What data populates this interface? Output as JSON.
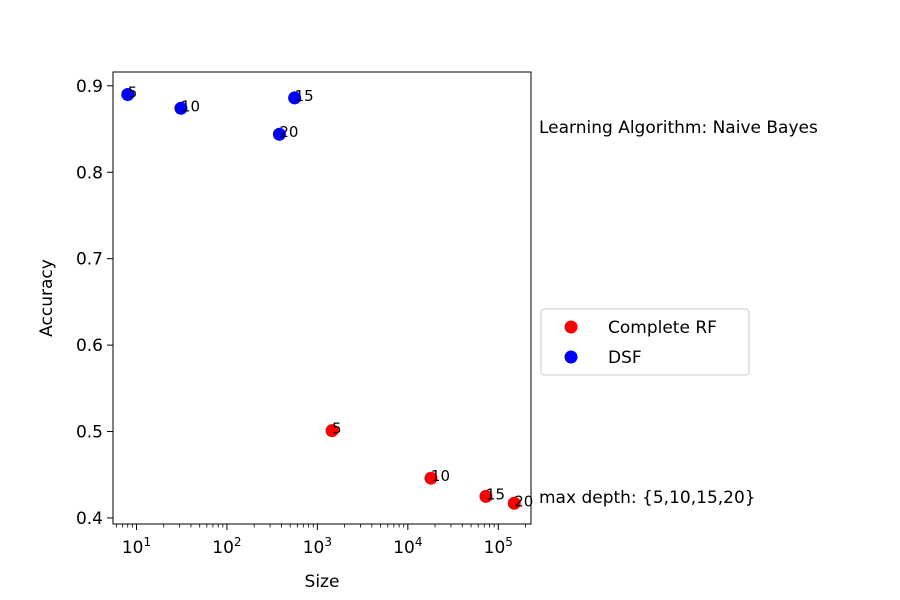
{
  "chart_data": {
    "type": "scatter",
    "xscale": "log",
    "xlabel": "Size",
    "ylabel": "Accuracy",
    "xlim": [
      5.5,
      230000
    ],
    "ylim": [
      0.393,
      0.916
    ],
    "x_ticks": [
      {
        "base": "10",
        "exp": "1",
        "value": 10
      },
      {
        "base": "10",
        "exp": "2",
        "value": 100
      },
      {
        "base": "10",
        "exp": "3",
        "value": 1000
      },
      {
        "base": "10",
        "exp": "4",
        "value": 10000
      },
      {
        "base": "10",
        "exp": "5",
        "value": 100000
      }
    ],
    "y_ticks": [
      {
        "label": "0.4",
        "value": 0.4
      },
      {
        "label": "0.5",
        "value": 0.5
      },
      {
        "label": "0.6",
        "value": 0.6
      },
      {
        "label": "0.7",
        "value": 0.7
      },
      {
        "label": "0.8",
        "value": 0.8
      },
      {
        "label": "0.9",
        "value": 0.9
      }
    ],
    "grid": false,
    "legend_position": "right",
    "series": [
      {
        "name": "Complete RF",
        "color": "#ff0000",
        "points": [
          {
            "x": 1450,
            "y": 0.501,
            "label": "5"
          },
          {
            "x": 18000,
            "y": 0.446,
            "label": "10"
          },
          {
            "x": 73000,
            "y": 0.425,
            "label": "15"
          },
          {
            "x": 150000,
            "y": 0.417,
            "label": "20"
          }
        ]
      },
      {
        "name": "DSF",
        "color": "#0000ff",
        "points": [
          {
            "x": 8,
            "y": 0.89,
            "label": "5"
          },
          {
            "x": 31,
            "y": 0.874,
            "label": "10"
          },
          {
            "x": 560,
            "y": 0.886,
            "label": "15"
          },
          {
            "x": 380,
            "y": 0.844,
            "label": "20"
          }
        ]
      }
    ],
    "annotations": [
      {
        "id": "algorithm",
        "text": "Learning Algorithm: Naive Bayes"
      },
      {
        "id": "depth",
        "text": "max depth: {5,10,15,20}"
      }
    ]
  }
}
